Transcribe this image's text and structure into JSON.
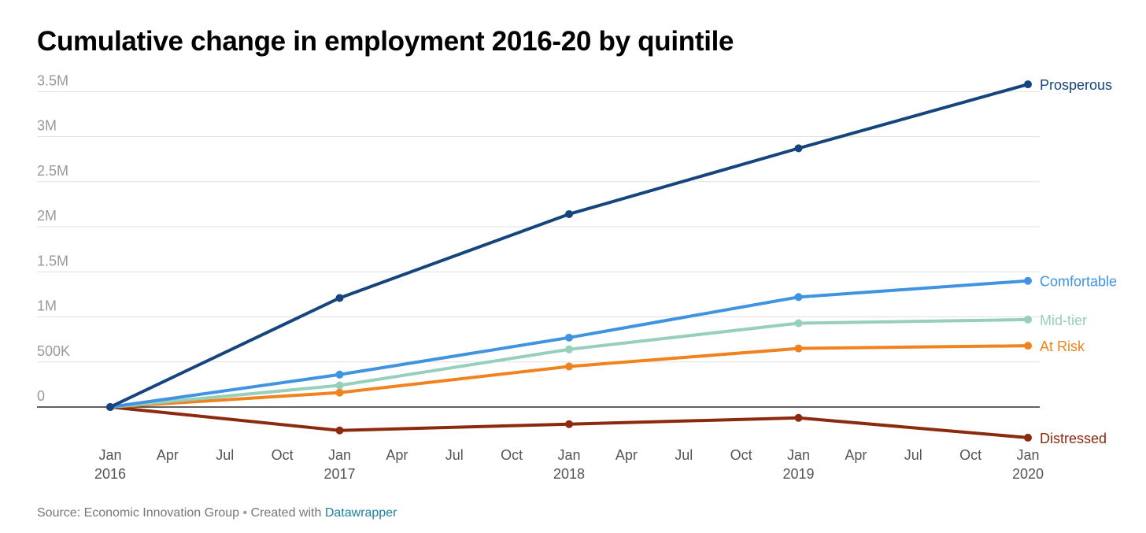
{
  "colors": {
    "background": "#ffffff",
    "gridline": "#e0e0e0",
    "zero_line": "#000000",
    "tick_label": "#999999",
    "x_label": "#555555",
    "link": "#1d81a2"
  },
  "footer": {
    "source_text": "Source: Economic Innovation Group",
    "separator": "•",
    "created_text": "Created with",
    "link_text": "Datawrapper"
  },
  "chart_data": {
    "type": "line",
    "title": "Cumulative change in employment 2016-20 by quintile",
    "xlabel": "",
    "ylabel": "",
    "x": [
      "2016-01",
      "2017-01",
      "2018-01",
      "2019-01",
      "2020-01"
    ],
    "xlim": [
      "2016-01",
      "2020-01"
    ],
    "ylim": [
      -350000,
      3500000
    ],
    "grid": true,
    "legend": "inline labels at line ends (right)",
    "y_ticks": [
      {
        "value": 0,
        "label": "0"
      },
      {
        "value": 500000,
        "label": "500K"
      },
      {
        "value": 1000000,
        "label": "1M"
      },
      {
        "value": 1500000,
        "label": "1.5M"
      },
      {
        "value": 2000000,
        "label": "2M"
      },
      {
        "value": 2500000,
        "label": "2.5M"
      },
      {
        "value": 3000000,
        "label": "3M"
      },
      {
        "value": 3500000,
        "label": "3.5M"
      }
    ],
    "x_ticks": [
      {
        "date": "2016-01",
        "month": "Jan",
        "year": "2016"
      },
      {
        "date": "2016-04",
        "month": "Apr",
        "year": ""
      },
      {
        "date": "2016-07",
        "month": "Jul",
        "year": ""
      },
      {
        "date": "2016-10",
        "month": "Oct",
        "year": ""
      },
      {
        "date": "2017-01",
        "month": "Jan",
        "year": "2017"
      },
      {
        "date": "2017-04",
        "month": "Apr",
        "year": ""
      },
      {
        "date": "2017-07",
        "month": "Jul",
        "year": ""
      },
      {
        "date": "2017-10",
        "month": "Oct",
        "year": ""
      },
      {
        "date": "2018-01",
        "month": "Jan",
        "year": "2018"
      },
      {
        "date": "2018-04",
        "month": "Apr",
        "year": ""
      },
      {
        "date": "2018-07",
        "month": "Jul",
        "year": ""
      },
      {
        "date": "2018-10",
        "month": "Oct",
        "year": ""
      },
      {
        "date": "2019-01",
        "month": "Jan",
        "year": "2019"
      },
      {
        "date": "2019-04",
        "month": "Apr",
        "year": ""
      },
      {
        "date": "2019-07",
        "month": "Jul",
        "year": ""
      },
      {
        "date": "2019-10",
        "month": "Oct",
        "year": ""
      },
      {
        "date": "2020-01",
        "month": "Jan",
        "year": "2020"
      }
    ],
    "series": [
      {
        "name": "Prosperous",
        "color": "#15457c",
        "values": [
          0,
          1210000,
          2140000,
          2870000,
          3580000
        ]
      },
      {
        "name": "Comfortable",
        "color": "#3f93e0",
        "values": [
          0,
          360000,
          770000,
          1220000,
          1400000
        ]
      },
      {
        "name": "Mid-tier",
        "color": "#96d0bb",
        "values": [
          0,
          240000,
          640000,
          930000,
          970000
        ]
      },
      {
        "name": "At Risk",
        "color": "#f0821f",
        "values": [
          0,
          160000,
          450000,
          650000,
          680000
        ]
      },
      {
        "name": "Distressed",
        "color": "#8b2a0e",
        "values": [
          0,
          -260000,
          -190000,
          -120000,
          -340000
        ]
      }
    ]
  }
}
